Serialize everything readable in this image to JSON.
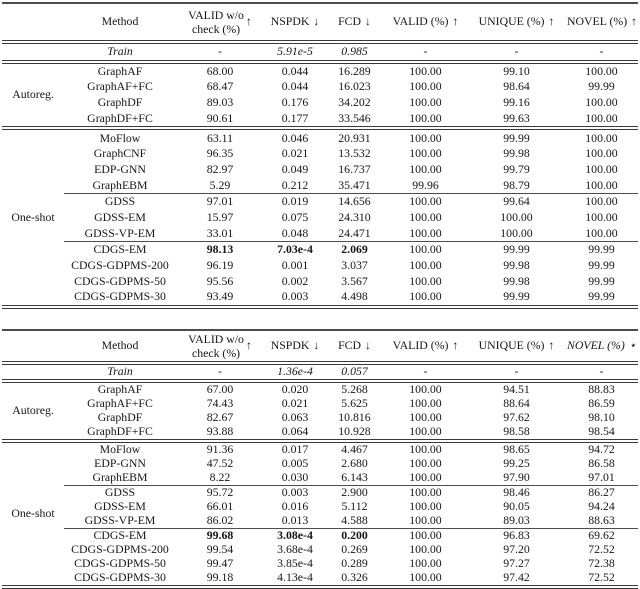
{
  "colors": {
    "text": "#161616",
    "rule": "#3a3a3a",
    "background": "#ffffff"
  },
  "tables": [
    {
      "name": "results-table-top",
      "header": {
        "method_label": "Method",
        "valid_wo_check": {
          "line1": "VALID w/o",
          "line2": "check (%)",
          "arrow": "↑"
        },
        "metrics": [
          {
            "label": "NSPDK",
            "arrow": "↓",
            "italic": false
          },
          {
            "label": "FCD",
            "arrow": "↓",
            "italic": false
          },
          {
            "label": "VALID (%)",
            "arrow": "↑",
            "italic": false
          },
          {
            "label": "UNIQUE (%)",
            "arrow": "↑",
            "italic": false
          },
          {
            "label": "NOVEL (%)",
            "arrow": "↑",
            "italic": false
          }
        ]
      },
      "train_row": {
        "label": "Train",
        "values": [
          "-",
          "5.91e-5",
          "0.985",
          "-",
          "-",
          "-"
        ]
      },
      "groups": [
        {
          "label": "Autoreg.",
          "rows": [
            {
              "method": "GraphAF",
              "values": [
                "68.00",
                "0.044",
                "16.289",
                "100.00",
                "99.10",
                "100.00"
              ]
            },
            {
              "method": "GraphAF+FC",
              "values": [
                "68.47",
                "0.044",
                "16.023",
                "100.00",
                "98.64",
                "99.99"
              ]
            },
            {
              "method": "GraphDF",
              "values": [
                "89.03",
                "0.176",
                "34.202",
                "100.00",
                "99.16",
                "100.00"
              ]
            },
            {
              "method": "GraphDF+FC",
              "values": [
                "90.61",
                "0.177",
                "33.546",
                "100.00",
                "99.63",
                "100.00"
              ]
            }
          ]
        },
        {
          "label": "One-shot",
          "rows": [
            {
              "method": "MoFlow",
              "values": [
                "63.11",
                "0.046",
                "20.931",
                "100.00",
                "99.99",
                "100.00"
              ]
            },
            {
              "method": "GraphCNF",
              "values": [
                "96.35",
                "0.021",
                "13.532",
                "100.00",
                "99.98",
                "100.00"
              ]
            },
            {
              "method": "EDP-GNN",
              "values": [
                "82.97",
                "0.049",
                "16.737",
                "100.00",
                "99.79",
                "100.00"
              ]
            },
            {
              "method": "GraphEBM",
              "values": [
                "5.29",
                "0.212",
                "35.471",
                "99.96",
                "98.79",
                "100.00"
              ],
              "rule_after": true
            },
            {
              "method": "GDSS",
              "values": [
                "97.01",
                "0.019",
                "14.656",
                "100.00",
                "99.64",
                "100.00"
              ]
            },
            {
              "method": "GDSS-EM",
              "values": [
                "15.97",
                "0.075",
                "24.310",
                "100.00",
                "100.00",
                "100.00"
              ]
            },
            {
              "method": "GDSS-VP-EM",
              "values": [
                "33.01",
                "0.048",
                "24.471",
                "100.00",
                "100.00",
                "100.00"
              ],
              "rule_after": true
            },
            {
              "method": "CDGS-EM",
              "values": [
                "98.13",
                "7.03e-4",
                "2.069",
                "100.00",
                "99.99",
                "99.99"
              ],
              "bold_value_count": 3
            },
            {
              "method": "CDGS-GDPMS-200",
              "values": [
                "96.19",
                "0.001",
                "3.037",
                "100.00",
                "99.98",
                "99.99"
              ]
            },
            {
              "method": "CDGS-GDPMS-50",
              "values": [
                "95.56",
                "0.002",
                "3.567",
                "100.00",
                "99.98",
                "99.99"
              ]
            },
            {
              "method": "CDGS-GDPMS-30",
              "values": [
                "93.49",
                "0.003",
                "4.498",
                "100.00",
                "99.99",
                "99.99"
              ]
            }
          ]
        }
      ]
    },
    {
      "name": "results-table-bottom",
      "header": {
        "method_label": "Method",
        "valid_wo_check": {
          "line1": "VALID w/o",
          "line2": "check (%)",
          "arrow": "↑"
        },
        "metrics": [
          {
            "label": "NSPDK",
            "arrow": "↓",
            "italic": false
          },
          {
            "label": "FCD",
            "arrow": "↓",
            "italic": false
          },
          {
            "label": "VALID (%)",
            "arrow": "↑",
            "italic": false
          },
          {
            "label": "UNIQUE (%)",
            "arrow": "↑",
            "italic": false
          },
          {
            "label": "NOVEL (%)",
            "arrow": "⋆",
            "italic": true
          }
        ]
      },
      "train_row": {
        "label": "Train",
        "values": [
          "-",
          "1.36e-4",
          "0.057",
          "-",
          "-",
          "-"
        ]
      },
      "groups": [
        {
          "label": "Autoreg.",
          "rows": [
            {
              "method": "GraphAF",
              "values": [
                "67.00",
                "0.020",
                "5.268",
                "100.00",
                "94.51",
                "88.83"
              ]
            },
            {
              "method": "GraphAF+FC",
              "values": [
                "74.43",
                "0.021",
                "5.625",
                "100.00",
                "88.64",
                "86.59"
              ]
            },
            {
              "method": "GraphDF",
              "values": [
                "82.67",
                "0.063",
                "10.816",
                "100.00",
                "97.62",
                "98.10"
              ]
            },
            {
              "method": "GraphDF+FC",
              "values": [
                "93.88",
                "0.064",
                "10.928",
                "100.00",
                "98.58",
                "98.54"
              ]
            }
          ]
        },
        {
          "label": "One-shot",
          "rows": [
            {
              "method": "MoFlow",
              "values": [
                "91.36",
                "0.017",
                "4.467",
                "100.00",
                "98.65",
                "94.72"
              ]
            },
            {
              "method": "EDP-GNN",
              "values": [
                "47.52",
                "0.005",
                "2.680",
                "100.00",
                "99.25",
                "86.58"
              ]
            },
            {
              "method": "GraphEBM",
              "values": [
                "8.22",
                "0.030",
                "6.143",
                "100.00",
                "97.90",
                "97.01"
              ],
              "rule_after": true
            },
            {
              "method": "GDSS",
              "values": [
                "95.72",
                "0.003",
                "2.900",
                "100.00",
                "98.46",
                "86.27"
              ]
            },
            {
              "method": "GDSS-EM",
              "values": [
                "66.01",
                "0.016",
                "5.112",
                "100.00",
                "90.05",
                "94.24"
              ]
            },
            {
              "method": "GDSS-VP-EM",
              "values": [
                "86.02",
                "0.013",
                "4.588",
                "100.00",
                "89.03",
                "88.63"
              ],
              "rule_after": true
            },
            {
              "method": "CDGS-EM",
              "values": [
                "99.68",
                "3.08e-4",
                "0.200",
                "100.00",
                "96.83",
                "69.62"
              ],
              "bold_value_count": 3
            },
            {
              "method": "CDGS-GDPMS-200",
              "values": [
                "99.54",
                "3.68e-4",
                "0.269",
                "100.00",
                "97.20",
                "72.52"
              ]
            },
            {
              "method": "CDGS-GDPMS-50",
              "values": [
                "99.47",
                "3.85e-4",
                "0.289",
                "100.00",
                "97.27",
                "72.38"
              ]
            },
            {
              "method": "CDGS-GDPMS-30",
              "values": [
                "99.18",
                "4.13e-4",
                "0.326",
                "100.00",
                "97.42",
                "72.52"
              ]
            }
          ]
        }
      ]
    }
  ]
}
